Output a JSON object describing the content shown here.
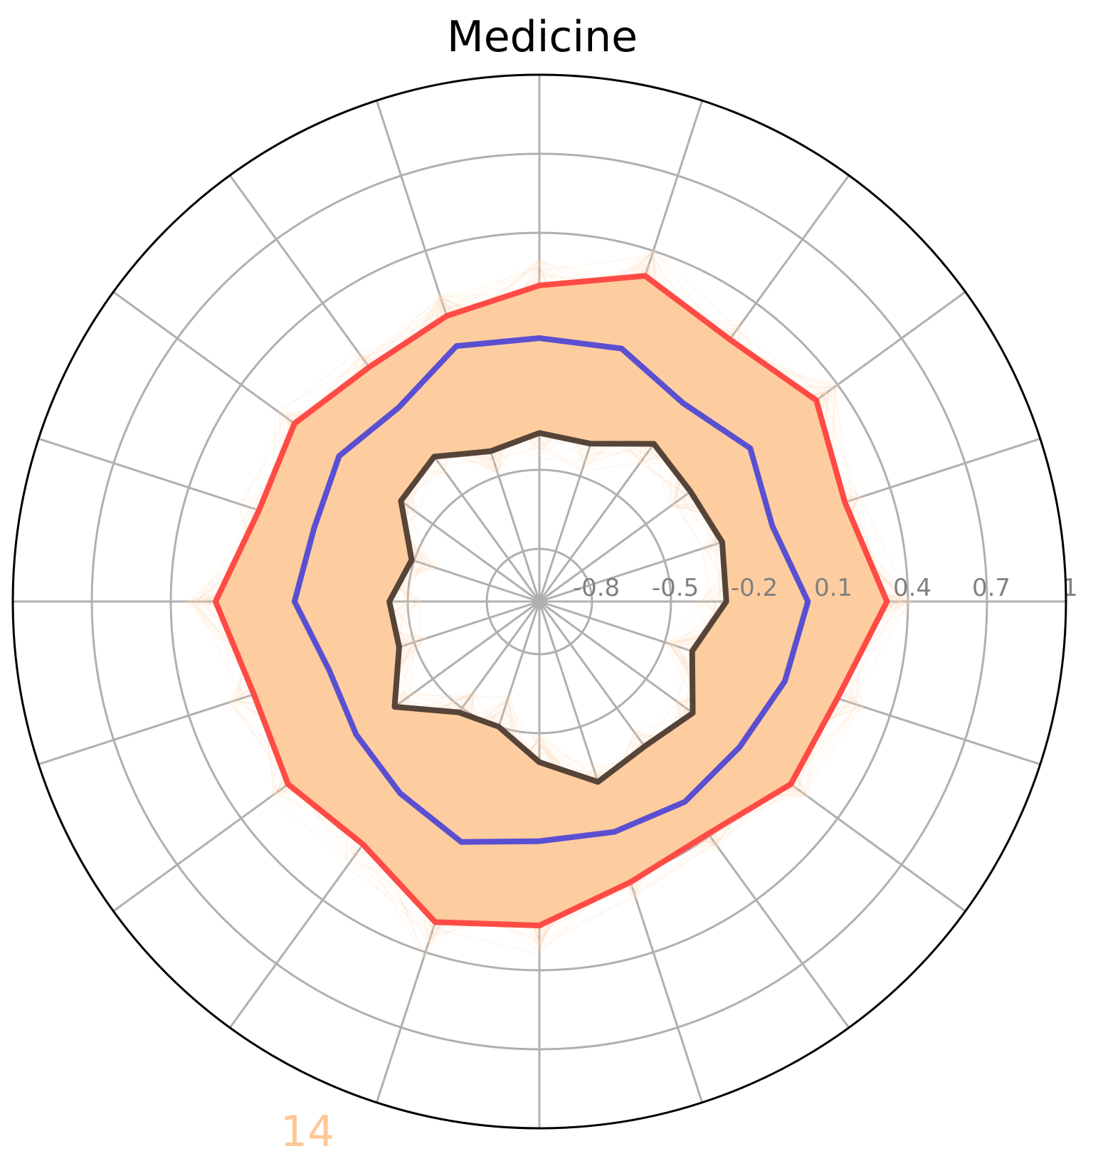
{
  "chart_data": {
    "type": "radar",
    "title": "Medicine",
    "corner_label": "14",
    "r_ticks": [
      -0.8,
      -0.5,
      -0.2,
      0.1,
      0.4,
      0.7,
      1
    ],
    "r_tick_labels": [
      "-0.8",
      "-0.5",
      "-0.2",
      "0.1",
      "0.4",
      "0.7",
      "1"
    ],
    "rlim": [
      -1,
      1
    ],
    "n_axes": 20,
    "grid": true,
    "colors": {
      "upper": "#ff4b45",
      "middle": "#5b4fd1",
      "lower": "#574438",
      "band": "#fdcda0",
      "traces": "#fdd2ad",
      "grid": "#b0b0b0",
      "tick_text": "#808080",
      "corner_label": "#fdc796",
      "frame": "#000000"
    },
    "series": [
      {
        "values": [
          0.32,
          0.22,
          0.3,
          0.23,
          0.3,
          0.2,
          0.14,
          0.1,
          0.15,
          0.12,
          0.23,
          0.14,
          0.18,
          0.14,
          0.28,
          0.23,
          0.12,
          0.09,
          0.18,
          0.19
        ]
      },
      {
        "values": [
          0.02,
          -0.07,
          -0.01,
          -0.07,
          0.01,
          0.0,
          0.02,
          -0.09,
          -0.06,
          -0.1,
          -0.07,
          -0.16,
          -0.14,
          -0.1,
          -0.04,
          -0.09,
          -0.08,
          -0.06,
          -0.06,
          -0.02
        ]
      },
      {
        "values": [
          -0.29,
          -0.27,
          -0.29,
          -0.26,
          -0.37,
          -0.36,
          -0.4,
          -0.32,
          -0.35,
          -0.49,
          -0.43,
          -0.44,
          -0.32,
          -0.48,
          -0.5,
          -0.39,
          -0.28,
          -0.32,
          -0.28,
          -0.39
        ]
      }
    ]
  }
}
